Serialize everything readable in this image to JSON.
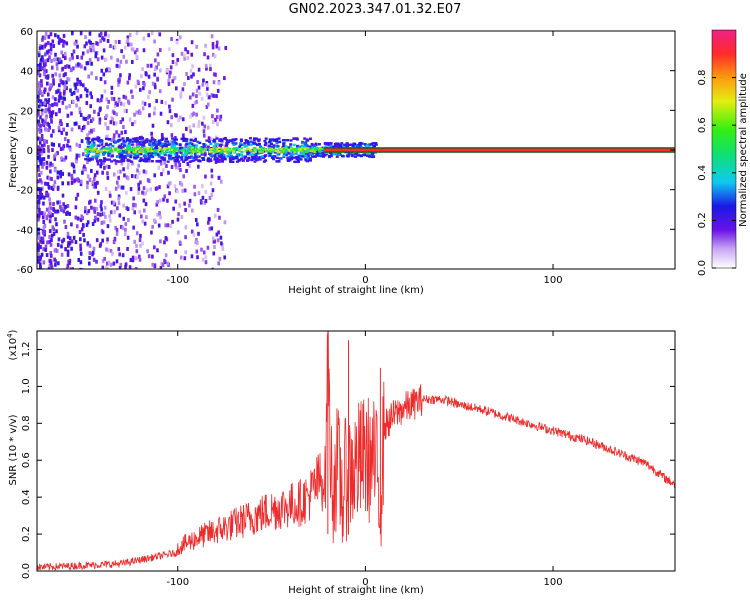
{
  "title": "GN02.2023.347.01.32.E07",
  "colors": {
    "snr_line": "#ee2b2b",
    "axis": "#000000",
    "background": "#ffffff"
  },
  "chart_data": [
    {
      "type": "heatmap",
      "xlabel": "Height of straight line (km)",
      "ylabel": "Frequency (Hz)",
      "xlim": [
        -175,
        165
      ],
      "ylim": [
        -60,
        60
      ],
      "x_ticks": [
        -100,
        0,
        100
      ],
      "x_tick_labels": [
        "-100",
        "0",
        "100"
      ],
      "y_ticks": [
        -60,
        -40,
        -20,
        0,
        20,
        40,
        60
      ],
      "y_tick_labels": [
        "-60",
        "-40",
        "-20",
        "0",
        "20",
        "40",
        "60"
      ],
      "colorbar": {
        "label": "Normalized spectral amplitude",
        "range": [
          0,
          1
        ],
        "ticks": [
          0.0,
          0.2,
          0.4,
          0.6,
          0.8
        ],
        "tick_labels": [
          "0.0",
          "0.2",
          "0.4",
          "0.6",
          "0.8"
        ]
      },
      "description_of_data": "Noisy purple speckle at heights below about -95 km; a narrow band near 0 Hz from about -150 to 5 km; a steady carrier line at 0 Hz (amplitude ~0.9) from about -22 km to the right edge.",
      "carrier": {
        "x_start": -22,
        "x_end": 165,
        "frequency": 0,
        "amplitude": 0.9
      }
    },
    {
      "type": "line",
      "xlabel": "Height of straight line (km)",
      "ylabel": "SNR (10 * v/v)",
      "y_multiplier_label": "(x10",
      "y_multiplier_exp": "4",
      "y_multiplier_close": ")",
      "xlim": [
        -175,
        165
      ],
      "ylim": [
        0,
        1.3
      ],
      "x_ticks": [
        -100,
        0,
        100
      ],
      "x_tick_labels": [
        "-100",
        "0",
        "100"
      ],
      "y_ticks": [
        0,
        0.2,
        0.4,
        0.6,
        0.8,
        1.0,
        1.2
      ],
      "y_tick_labels": [
        "0.0",
        "0.2",
        "0.4",
        "0.6",
        "0.8",
        "1.0",
        "1.2"
      ],
      "series": [
        {
          "x": [
            -175,
            -150,
            -130,
            -120,
            -110,
            -100,
            -90,
            -80,
            -70,
            -60,
            -50,
            -45,
            -40,
            -35,
            -30,
            -25,
            -21,
            -20,
            -18,
            -15,
            -12,
            -10,
            -5,
            0,
            5,
            8,
            10,
            15,
            20,
            25,
            30,
            35,
            40,
            45,
            50,
            60,
            70,
            80,
            90,
            100,
            110,
            120,
            130,
            140,
            150,
            160,
            165
          ],
          "y": [
            0.02,
            0.03,
            0.04,
            0.06,
            0.08,
            0.1,
            0.14,
            0.17,
            0.2,
            0.23,
            0.26,
            0.27,
            0.28,
            0.29,
            0.32,
            0.38,
            0.4,
            1.2,
            0.5,
            0.6,
            0.45,
            0.55,
            0.6,
            0.65,
            0.62,
            0.45,
            0.78,
            0.84,
            0.88,
            0.9,
            0.93,
            0.93,
            0.93,
            0.92,
            0.9,
            0.88,
            0.85,
            0.82,
            0.79,
            0.76,
            0.73,
            0.7,
            0.66,
            0.62,
            0.58,
            0.5,
            0.47
          ]
        }
      ],
      "annotations": [
        {
          "x": -20,
          "y": 1.3,
          "note": "spike"
        },
        {
          "x": -9,
          "y": 1.25,
          "note": "spike"
        },
        {
          "x": 8,
          "y": 1.1,
          "note": "spike"
        }
      ]
    }
  ]
}
